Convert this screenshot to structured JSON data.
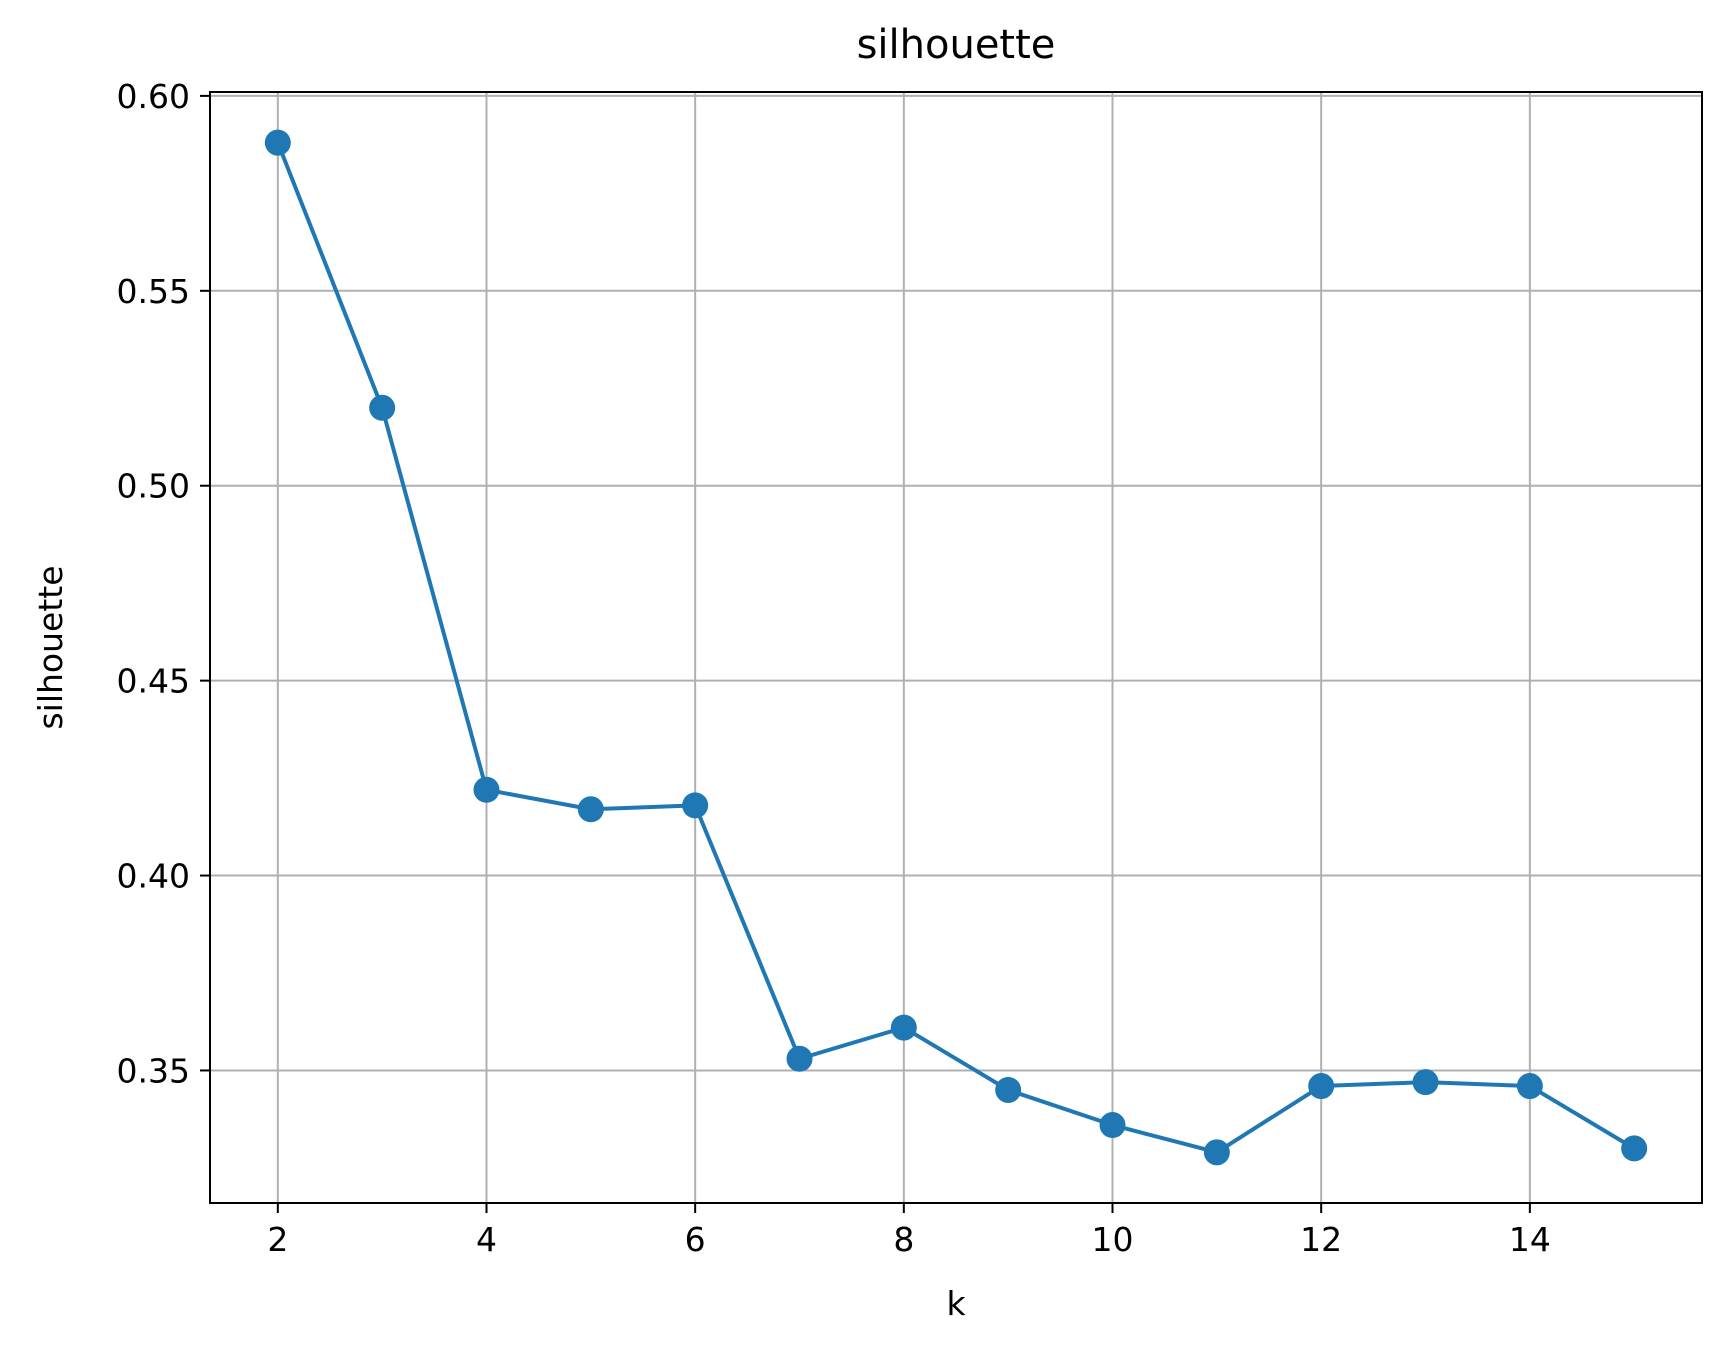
{
  "chart_data": {
    "type": "line",
    "title": "silhouette",
    "xlabel": "k",
    "ylabel": "silhouette",
    "xlim": [
      1.35,
      15.65
    ],
    "ylim": [
      0.316,
      0.601
    ],
    "xticks": [
      2,
      4,
      6,
      8,
      10,
      12,
      14
    ],
    "yticks": [
      0.35,
      0.4,
      0.45,
      0.5,
      0.55,
      0.6
    ],
    "xtick_labels": [
      "2",
      "4",
      "6",
      "8",
      "10",
      "12",
      "14"
    ],
    "ytick_labels": [
      "0.35",
      "0.40",
      "0.45",
      "0.50",
      "0.55",
      "0.60"
    ],
    "grid": true,
    "marker": "circle",
    "color": "#1f77b4",
    "x": [
      2,
      3,
      4,
      5,
      6,
      7,
      8,
      9,
      10,
      11,
      12,
      13,
      14,
      15
    ],
    "y": [
      0.588,
      0.52,
      0.422,
      0.417,
      0.418,
      0.353,
      0.361,
      0.345,
      0.336,
      0.329,
      0.346,
      0.347,
      0.346,
      0.33
    ]
  }
}
